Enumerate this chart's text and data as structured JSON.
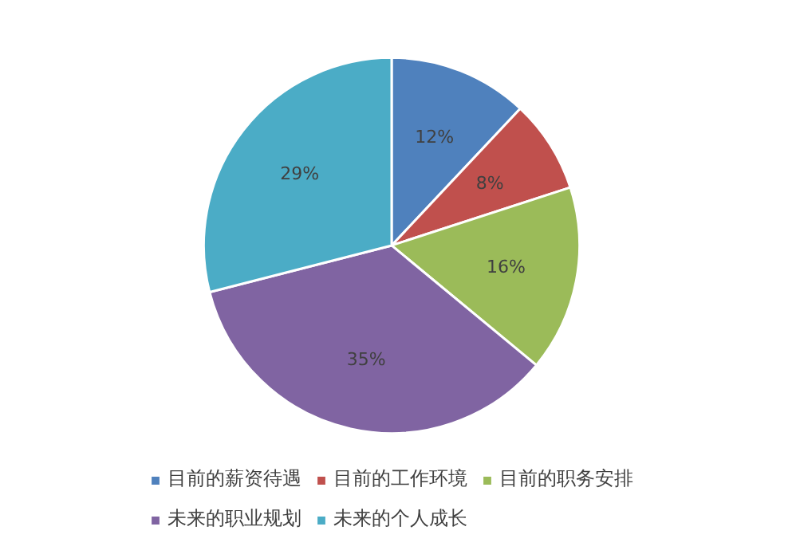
{
  "chart_data": {
    "type": "pie",
    "categories": [
      "目前的薪资待遇",
      "目前的工作环境",
      "目前的职务安排",
      "未来的职业规划",
      "未来的个人成长"
    ],
    "values": [
      12,
      8,
      16,
      35,
      29
    ],
    "value_labels": [
      "12%",
      "8%",
      "16%",
      "35%",
      "29%"
    ],
    "colors": [
      "#4f81bd",
      "#c0504d",
      "#9bbb59",
      "#8064a2",
      "#4bacc6"
    ],
    "legend": "bottom"
  }
}
